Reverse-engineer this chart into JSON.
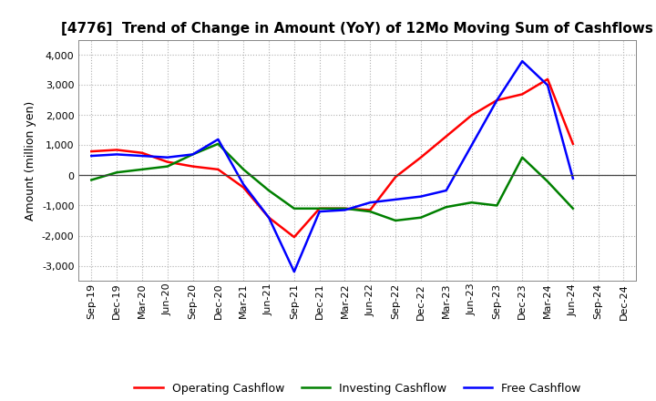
{
  "title": "[4776]  Trend of Change in Amount (YoY) of 12Mo Moving Sum of Cashflows",
  "ylabel": "Amount (million yen)",
  "x_labels": [
    "Sep-19",
    "Dec-19",
    "Mar-20",
    "Jun-20",
    "Sep-20",
    "Dec-20",
    "Mar-21",
    "Jun-21",
    "Sep-21",
    "Dec-21",
    "Mar-22",
    "Jun-22",
    "Sep-22",
    "Dec-22",
    "Mar-23",
    "Jun-23",
    "Sep-23",
    "Dec-23",
    "Mar-24",
    "Jun-24",
    "Sep-24",
    "Dec-24"
  ],
  "operating": [
    800,
    850,
    750,
    450,
    300,
    200,
    -400,
    -1400,
    -2050,
    -1100,
    -1100,
    -1150,
    -50,
    600,
    1300,
    2000,
    2500,
    2700,
    3200,
    1050,
    null,
    null
  ],
  "investing": [
    -150,
    100,
    200,
    300,
    700,
    1050,
    200,
    -500,
    -1100,
    -1100,
    -1100,
    -1200,
    -1500,
    -1400,
    -1050,
    -900,
    -1000,
    600,
    -200,
    -1100,
    null,
    null
  ],
  "free": [
    650,
    700,
    650,
    600,
    700,
    1200,
    -300,
    -1400,
    -3200,
    -1200,
    -1150,
    -900,
    -800,
    -700,
    -500,
    1000,
    2500,
    3800,
    3000,
    -100,
    null,
    null
  ],
  "operating_color": "#ff0000",
  "investing_color": "#008000",
  "free_color": "#0000ff",
  "ylim": [
    -3500,
    4500
  ],
  "yticks": [
    -3000,
    -2000,
    -1000,
    0,
    1000,
    2000,
    3000,
    4000
  ],
  "legend_labels": [
    "Operating Cashflow",
    "Investing Cashflow",
    "Free Cashflow"
  ],
  "background_color": "#ffffff",
  "grid_color": "#b0b0b0",
  "line_width": 1.8,
  "title_fontsize": 11,
  "ylabel_fontsize": 9,
  "tick_fontsize": 8
}
